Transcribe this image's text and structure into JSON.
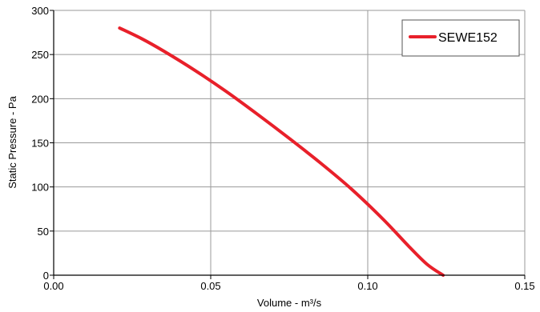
{
  "chart_data": {
    "type": "line",
    "title": "",
    "xlabel": "Volume - m³/s",
    "ylabel": "Static Pressure - Pa",
    "xlim": [
      0,
      0.15
    ],
    "ylim": [
      0,
      300
    ],
    "x_ticks": [
      0,
      0.05,
      0.1,
      0.15
    ],
    "x_tick_labels": [
      "0.00",
      "0.05",
      "0.10",
      "0.15"
    ],
    "y_ticks": [
      0,
      50,
      100,
      150,
      200,
      250,
      300
    ],
    "y_tick_labels": [
      "0",
      "50",
      "100",
      "150",
      "200",
      "250",
      "300"
    ],
    "grid": true,
    "legend_position": "top-right",
    "series": [
      {
        "name": "SEWE152",
        "color": "#e8202a",
        "x": [
          0.021,
          0.028,
          0.035,
          0.045,
          0.055,
          0.065,
          0.075,
          0.085,
          0.095,
          0.105,
          0.113,
          0.119,
          0.124
        ],
        "y": [
          280,
          268,
          254,
          232,
          208,
          182,
          155,
          127,
          97,
          63,
          33,
          12,
          0
        ]
      }
    ]
  }
}
